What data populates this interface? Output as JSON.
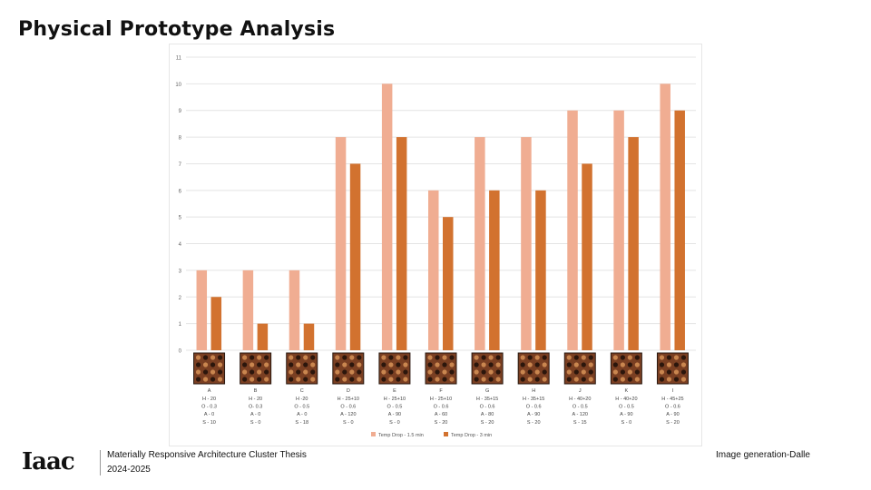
{
  "slide": {
    "title": "Physical Prototype Analysis"
  },
  "footer": {
    "logo_text": "Iaac",
    "line1": "Materially Responsive Architecture Cluster Thesis",
    "line2": "2024-2025",
    "credit": "Image generation-Dalle"
  },
  "chart_data": {
    "type": "bar",
    "categories": [
      "A",
      "B",
      "C",
      "D",
      "E",
      "F",
      "G",
      "H",
      "J",
      "K",
      "I"
    ],
    "category_details": [
      [
        "H - 20",
        "O - 0.3",
        "A - 0",
        "S - 10"
      ],
      [
        "H - 20",
        "O- 0.3",
        "A - 0",
        "S - 0"
      ],
      [
        "H -20",
        "O - 0.5",
        "A - 0",
        "S - 18"
      ],
      [
        "H - 25+10",
        "O - 0.6",
        "A - 120",
        "S - 0"
      ],
      [
        "H - 25+10",
        "O - 0.5",
        "A - 90",
        "S - 0"
      ],
      [
        "H - 25+10",
        "O - 0.6",
        "A - 60",
        "S - 20"
      ],
      [
        "H - 35+15",
        "O - 0.6",
        "A - 80",
        "S - 20"
      ],
      [
        "H - 35+15",
        "O - 0.6",
        "A - 90",
        "S - 20"
      ],
      [
        "H - 40+20",
        "O - 0.5",
        "A - 120",
        "S - 15"
      ],
      [
        "H - 40+20",
        "O - 0.5",
        "A - 90",
        "S - 0"
      ],
      [
        "H - 45+25",
        "O - 0.6",
        "A - 90",
        "S - 20"
      ]
    ],
    "series": [
      {
        "name": "Temp Drop - 1.5 min",
        "color": "#f0ad92",
        "values": [
          3,
          3,
          3,
          8,
          10,
          6,
          8,
          8,
          9,
          9,
          10
        ]
      },
      {
        "name": "Temp Drop - 3 min",
        "color": "#d2722f",
        "values": [
          2,
          1,
          1,
          7,
          8,
          5,
          6,
          6,
          7,
          8,
          9
        ]
      }
    ],
    "ylim": [
      0,
      11
    ],
    "yticks": [
      0,
      1,
      2,
      3,
      4,
      5,
      6,
      7,
      8,
      9,
      10,
      11
    ],
    "grid": true,
    "legend": "bottom-center",
    "thumbnail_icon": "prototype-photo-icon"
  }
}
